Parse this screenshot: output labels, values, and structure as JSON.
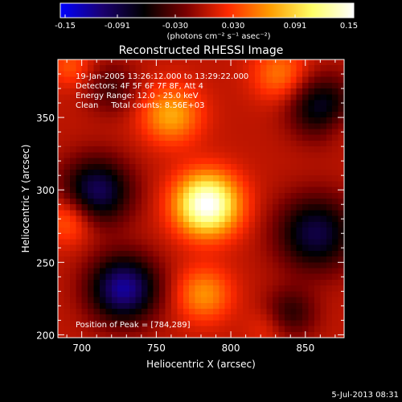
{
  "colorbar": {
    "ticks": [
      "-0.15",
      "-0.091",
      "-0.030",
      "0.030",
      "0.091",
      "0.15"
    ],
    "units": "(photons cm⁻² s⁻¹ asec⁻²)",
    "min": -0.15,
    "max": 0.15,
    "colormap": [
      "#0000ff",
      "#1a0070",
      "#000000",
      "#7a0000",
      "#ff2a00",
      "#ff9c00",
      "#ffff66",
      "#ffffff"
    ]
  },
  "title": "Reconstructed RHESSI Image",
  "info": {
    "line1": "19-Jan-2005 13:26:12.000 to 13:29:22.000",
    "line2": "Detectors: 4F 5F 6F 7F 8F, Att 4",
    "line3": "Energy Range: 12.0 - 25.0 keV",
    "line4": "Clean     Total counts: 8.56E+03",
    "peak": "Position of Peak = [784,289]"
  },
  "footer": {
    "date": "5-Jul-2013 08:31"
  },
  "chart_data": {
    "type": "heatmap",
    "title": "Reconstructed RHESSI Image",
    "xlabel": "Heliocentric X (arcsec)",
    "ylabel": "Heliocentric Y (arcsec)",
    "xlim": [
      684,
      876
    ],
    "ylim": [
      198,
      390
    ],
    "xticks": [
      700,
      750,
      800,
      850
    ],
    "yticks": [
      200,
      250,
      300,
      350
    ],
    "peak": {
      "x": 784,
      "y": 289
    },
    "value_range": [
      -0.15,
      0.15
    ],
    "grid": false,
    "sources": [
      {
        "x": 784,
        "y": 290,
        "amp": 0.155,
        "sigma": 15
      },
      {
        "x": 760,
        "y": 352,
        "amp": 0.07,
        "sigma": 14
      },
      {
        "x": 833,
        "y": 380,
        "amp": 0.05,
        "sigma": 13
      },
      {
        "x": 692,
        "y": 280,
        "amp": 0.05,
        "sigma": 12
      },
      {
        "x": 782,
        "y": 228,
        "amp": 0.06,
        "sigma": 13
      },
      {
        "x": 692,
        "y": 385,
        "amp": 0.035,
        "sigma": 10
      },
      {
        "x": 872,
        "y": 345,
        "amp": 0.02,
        "sigma": 10
      },
      {
        "x": 825,
        "y": 205,
        "amp": 0.02,
        "sigma": 10
      },
      {
        "x": 710,
        "y": 299,
        "amp": -0.1,
        "sigma": 16
      },
      {
        "x": 728,
        "y": 232,
        "amp": -0.12,
        "sigma": 16
      },
      {
        "x": 857,
        "y": 270,
        "amp": -0.09,
        "sigma": 18
      },
      {
        "x": 861,
        "y": 357,
        "amp": -0.08,
        "sigma": 15
      },
      {
        "x": 840,
        "y": 215,
        "amp": -0.05,
        "sigma": 12
      },
      {
        "x": 720,
        "y": 370,
        "amp": -0.04,
        "sigma": 12
      }
    ]
  }
}
